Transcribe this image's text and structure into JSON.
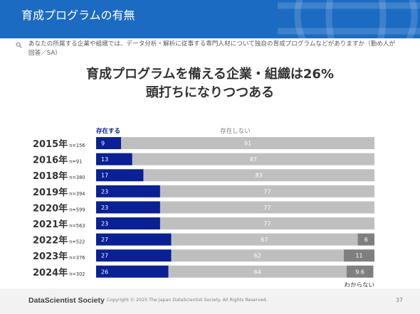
{
  "page": {
    "title": "育成プログラムの有無",
    "question": "あなたの所属する企業や組織では、データ分析・解析に従事する専門人材について独自の育成プログラムなどがありますか（勤め人が回答／SA）",
    "headline_line1": "育成プログラムを備える企業・組織は26%",
    "headline_line2": "頭打ちになりつつある"
  },
  "footer": {
    "logo": "DataScientist Society",
    "copyright": "Copyright © 2025  The Japan DataScientist Society. All Rights Reserved.",
    "page_number": "37"
  },
  "colors": {
    "header": "#1c6bc2",
    "exists": "#0a2094",
    "not_exists": "#bfbfbf",
    "unknown": "#7f7f7f"
  },
  "chart_data": {
    "type": "bar",
    "orientation": "horizontal",
    "stacked": true,
    "categories": [
      "2015年",
      "2016年",
      "2018年",
      "2019年",
      "2020年",
      "2021年",
      "2022年",
      "2023年",
      "2024年"
    ],
    "sample_sizes": [
      "n=156",
      "n=91",
      "n=380",
      "n=394",
      "n=599",
      "n=563",
      "n=522",
      "n=376",
      "n=302"
    ],
    "series": [
      {
        "name": "存在する",
        "color": "#0a2094",
        "values": [
          9,
          13,
          17,
          23,
          23,
          23,
          27,
          27,
          26
        ]
      },
      {
        "name": "存在しない",
        "color": "#bfbfbf",
        "values": [
          91,
          87,
          83,
          77,
          77,
          77,
          67,
          62,
          64
        ]
      },
      {
        "name": "わからない",
        "color": "#7f7f7f",
        "values": [
          null,
          null,
          null,
          null,
          null,
          null,
          6,
          11,
          9.6
        ]
      }
    ],
    "xlim": [
      0,
      100
    ],
    "data_labels": true,
    "legend_position": "series labels above and below bars"
  }
}
